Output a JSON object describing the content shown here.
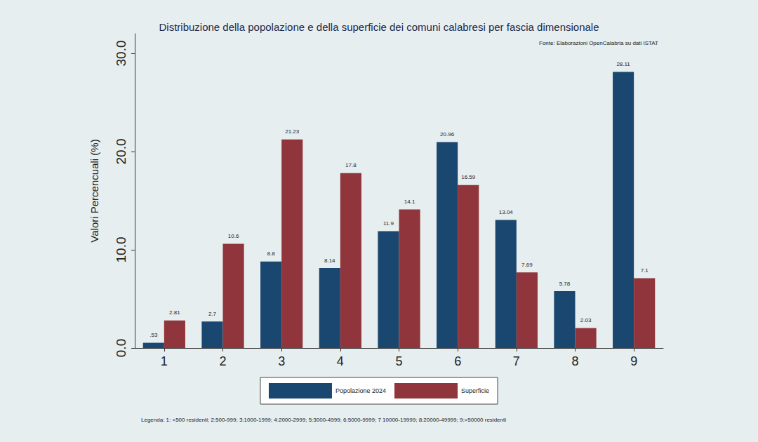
{
  "chart_data": {
    "type": "bar",
    "title": "Distribuzione della popolazione e della superficie dei comuni calabresi per fascia dimensionale",
    "annotations": [
      "Fonte: Elaborazioni OpenCalabria su dati ISTAT",
      "Legenda: 1: <500 residenti; 2:500-999; 3:1000-1999; 4:2000-2999; 5:3000-4999; 6:5000-9999; 7 10000-19999; 8:20000-49999; 9:>50000 residenti"
    ],
    "y_label": "Valori Percencuali (%)",
    "categories": [
      "1",
      "2",
      "3",
      "4",
      "5",
      "6",
      "7",
      "8",
      "9"
    ],
    "series": [
      {
        "name": "Popolazione 2024",
        "color": "#1a476f",
        "values": [
          0.53,
          2.7,
          8.8,
          8.14,
          11.9,
          20.96,
          13.04,
          5.78,
          28.11
        ],
        "value_labels": [
          ".53",
          "2.7",
          "8.8",
          "8.14",
          "11.9",
          "20.96",
          "13.04",
          "5.78",
          "28.11"
        ]
      },
      {
        "name": "Superficie",
        "color": "#90353b",
        "values": [
          2.81,
          10.6,
          21.23,
          17.8,
          14.1,
          16.59,
          7.69,
          2.03,
          7.1
        ]
      }
    ],
    "ylim": [
      0,
      32
    ],
    "yticks": [
      {
        "value": 0,
        "label": "0.0"
      },
      {
        "value": 10,
        "label": "10.0"
      },
      {
        "value": 20,
        "label": "20.0"
      },
      {
        "value": 30,
        "label": "30.0"
      }
    ],
    "grid": false,
    "legend": "bottom",
    "data_labels": true
  }
}
